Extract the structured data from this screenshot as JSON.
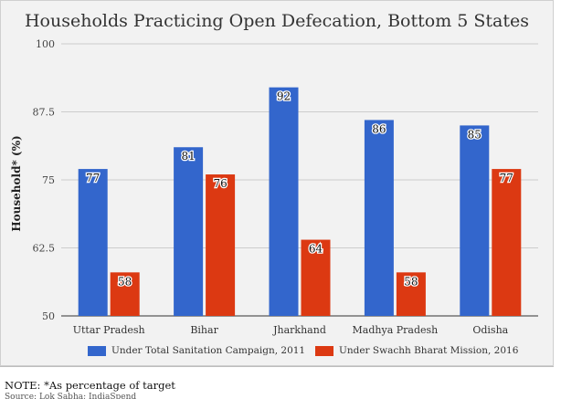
{
  "note": "NOTE: *As percentage of target",
  "source": "Source: Lok Sabha; IndiaSpend",
  "chart_data": {
    "type": "bar",
    "title": "Households Practicing Open Defecation, Bottom 5 States",
    "xlabel": "",
    "ylabel": "Household* (%)",
    "ylim": [
      50,
      100
    ],
    "yticks": [
      50,
      62.5,
      75,
      87.5,
      100
    ],
    "ytick_labels": [
      "50",
      "62.5",
      "75",
      "87.5",
      "100"
    ],
    "grid": true,
    "legend_position": "bottom",
    "categories": [
      "Uttar Pradesh",
      "Bihar",
      "Jharkhand",
      "Madhya Pradesh",
      "Odisha"
    ],
    "series": [
      {
        "name": "Under Total Sanitation Campaign, 2011",
        "color": "#3366cc",
        "values": [
          77,
          81,
          92,
          86,
          85
        ]
      },
      {
        "name": "Under Swachh Bharat Mission, 2016",
        "color": "#dc3912",
        "values": [
          58,
          76,
          64,
          58,
          77
        ]
      }
    ]
  }
}
